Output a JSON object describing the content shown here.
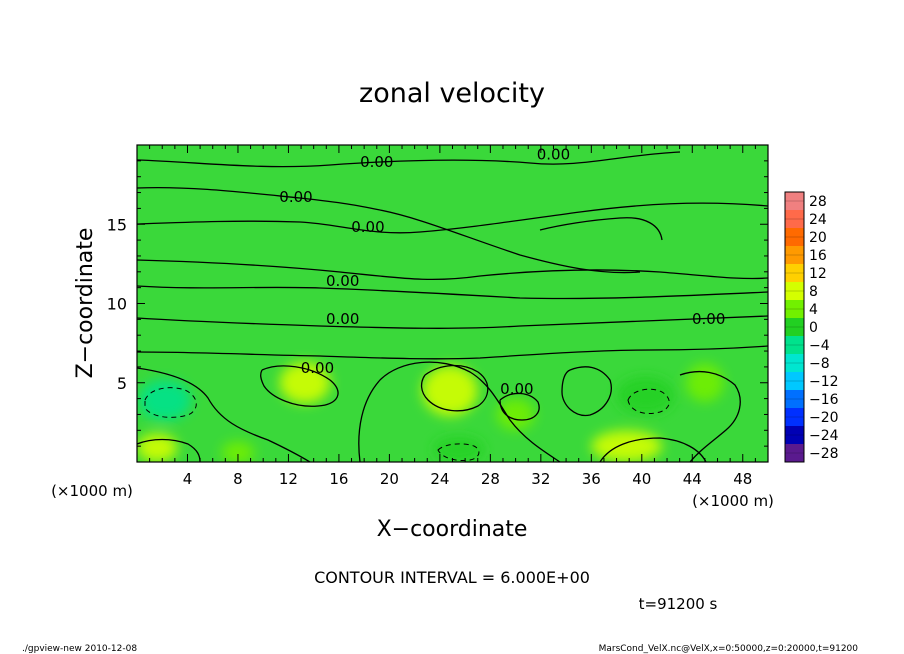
{
  "chart_data": {
    "type": "heatmap",
    "title": "zonal velocity",
    "xlabel": "X−coordinate",
    "ylabel": "Z−coordinate",
    "x_unit_label": "(×1000 m)",
    "y_unit_label": "(×1000 m)",
    "xlim": [
      0,
      50
    ],
    "ylim": [
      0,
      20
    ],
    "x_ticks": [
      4,
      8,
      12,
      16,
      20,
      24,
      28,
      32,
      36,
      40,
      44,
      48
    ],
    "y_ticks": [
      5,
      10,
      15
    ],
    "colorbar_levels": [
      28,
      24,
      20,
      16,
      12,
      8,
      4,
      0,
      -4,
      -8,
      -12,
      -16,
      -20,
      -24,
      -28
    ],
    "colorbar_labels": [
      "28",
      "24",
      "20",
      "16",
      "12",
      "8",
      "4",
      "0",
      "−4",
      "−8",
      "−12",
      "−16",
      "−20",
      "−24",
      "−28"
    ],
    "colorbar_colors": [
      "#f08080",
      "#ff6a4a",
      "#ff6a00",
      "#ff9a00",
      "#ffd000",
      "#d4ff00",
      "#72f000",
      "#22d022",
      "#00e28c",
      "#00e6d0",
      "#00c8ff",
      "#0070ff",
      "#0030ff",
      "#0000b4",
      "#5a1a8e"
    ],
    "contour_labels": [
      {
        "text": "0.00",
        "x": 19.0,
        "y": 18.6
      },
      {
        "text": "0.00",
        "x": 33.0,
        "y": 19.1
      },
      {
        "text": "0.00",
        "x": 12.6,
        "y": 16.4
      },
      {
        "text": "0.00",
        "x": 18.3,
        "y": 14.5
      },
      {
        "text": "0.00",
        "x": 16.3,
        "y": 11.1
      },
      {
        "text": "0.00",
        "x": 16.3,
        "y": 8.7
      },
      {
        "text": "0.00",
        "x": 45.3,
        "y": 8.7
      },
      {
        "text": "0.00",
        "x": 14.3,
        "y": 5.6
      },
      {
        "text": "0.00",
        "x": 30.1,
        "y": 4.3
      }
    ],
    "field_blobs": [
      {
        "x": 2.2,
        "y": 3.9,
        "rx": 2.1,
        "ry": 1.3,
        "value": -6
      },
      {
        "x": 13.3,
        "y": 5.0,
        "rx": 2.0,
        "ry": 1.3,
        "value": 6
      },
      {
        "x": 24.8,
        "y": 4.5,
        "rx": 2.2,
        "ry": 1.6,
        "value": 7
      },
      {
        "x": 40.3,
        "y": 4.2,
        "rx": 2.3,
        "ry": 1.2,
        "value": -4
      },
      {
        "x": 38.8,
        "y": 1.0,
        "rx": 2.8,
        "ry": 1.0,
        "value": 7
      },
      {
        "x": 1.6,
        "y": 0.9,
        "rx": 1.6,
        "ry": 0.9,
        "value": 7
      },
      {
        "x": 8.0,
        "y": 0.6,
        "rx": 1.3,
        "ry": 0.7,
        "value": 3
      },
      {
        "x": 25.5,
        "y": 0.8,
        "rx": 2.0,
        "ry": 0.8,
        "value": -2
      },
      {
        "x": 30.0,
        "y": 3.0,
        "rx": 1.5,
        "ry": 1.0,
        "value": 2
      },
      {
        "x": 45.0,
        "y": 5.0,
        "rx": 1.5,
        "ry": 1.2,
        "value": 2
      }
    ],
    "contour_interval_text": "CONTOUR INTERVAL = 6.000E+00",
    "time_text": "t=91200 s",
    "footer_left": "./gpview-new  2010-12-08",
    "footer_right": "MarsCond_VelX.nc@VelX,x=0:50000,z=0:20000,t=91200"
  }
}
